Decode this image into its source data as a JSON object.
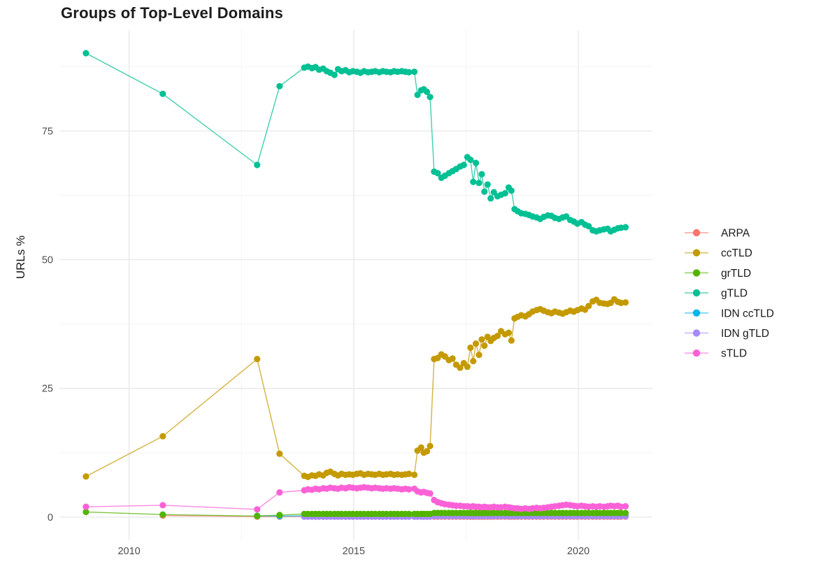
{
  "chart_data": {
    "type": "line",
    "title": "Groups of Top-Level Domains",
    "xlabel": "",
    "ylabel": "URLs %",
    "legend_position": "right",
    "grid": true,
    "xlim": [
      2008.45,
      2021.65
    ],
    "ylim": [
      -4.5,
      94.6
    ],
    "x_ticks": [
      2010,
      2015,
      2020
    ],
    "x_minor_ticks": [
      2012.5,
      2017.5
    ],
    "y_ticks": [
      0,
      25,
      50,
      75
    ],
    "y_minor_ticks": [
      12.5,
      37.5,
      62.5,
      87.5
    ],
    "legend_order": [
      "ARPA",
      "ccTLD",
      "grTLD",
      "gTLD",
      "IDN ccTLD",
      "IDN gTLD",
      "sTLD"
    ],
    "draw_order": [
      "ARPA",
      "IDN ccTLD",
      "IDN gTLD",
      "grTLD",
      "ccTLD",
      "gTLD",
      "sTLD"
    ],
    "x_early": [
      2009.04,
      2010.75,
      2012.85,
      2013.35
    ],
    "x_dense": [
      2013.9,
      2013.98,
      2014.07,
      2014.15,
      2014.23,
      2014.32,
      2014.4,
      2014.48,
      2014.57,
      2014.65,
      2014.73,
      2014.82,
      2014.9,
      2014.98,
      2015.07,
      2015.15,
      2015.23,
      2015.32,
      2015.4,
      2015.48,
      2015.57,
      2015.65,
      2015.73,
      2015.82,
      2015.9,
      2015.98,
      2016.07,
      2016.15,
      2016.23,
      2016.35,
      2016.42,
      2016.5,
      2016.56,
      2016.63,
      2016.7,
      2016.79,
      2016.87,
      2016.95,
      2017.03,
      2017.12,
      2017.2,
      2017.28,
      2017.37,
      2017.45,
      2017.53,
      2017.6,
      2017.66,
      2017.72,
      2017.79,
      2017.85,
      2017.91,
      2017.98,
      2018.05,
      2018.12,
      2018.2,
      2018.28,
      2018.37,
      2018.45,
      2018.51,
      2018.58,
      2018.65,
      2018.73,
      2018.82,
      2018.9,
      2018.98,
      2019.07,
      2019.15,
      2019.23,
      2019.32,
      2019.4,
      2019.48,
      2019.57,
      2019.65,
      2019.73,
      2019.82,
      2019.9,
      2019.98,
      2020.07,
      2020.15,
      2020.23,
      2020.32,
      2020.4,
      2020.48,
      2020.57,
      2020.65,
      2020.72,
      2020.8,
      2020.88,
      2020.95,
      2021.05
    ],
    "series": [
      {
        "name": "ARPA",
        "color": "#F8766D",
        "values_early": [
          null,
          0.3,
          0.1,
          0.1
        ],
        "values_dense": [
          0.1,
          0.1,
          0.1,
          0.1,
          0.1,
          0.1,
          0.1,
          0.1,
          0.1,
          0.1,
          0.1,
          0.1,
          0.1,
          0.1,
          0.1,
          0.1,
          0.1,
          0.1,
          0.1,
          0.1,
          0.1,
          0.1,
          0.1,
          0.1,
          0.1,
          0.1,
          0.1,
          0.1,
          0.1,
          0.1,
          0.1,
          0.1,
          0.1,
          0.1,
          0.1,
          0.1,
          0.1,
          0.1,
          0.1,
          0.1,
          0.1,
          0.1,
          0.1,
          0.1,
          0.1,
          0.1,
          0.1,
          0.1,
          0.1,
          0.1,
          0.1,
          0.1,
          0.1,
          0.1,
          0.1,
          0.1,
          0.1,
          0.1,
          0.1,
          0.1,
          0.1,
          0.1,
          0.1,
          0.1,
          0.1,
          0.1,
          0.1,
          0.1,
          0.1,
          0.1,
          0.1,
          0.1,
          0.1,
          0.1,
          0.1,
          0.1,
          0.1,
          0.1,
          0.1,
          0.1,
          0.1,
          0.1,
          0.1,
          0.1,
          0.1,
          0.1,
          0.1,
          0.1,
          0.1,
          0.1
        ]
      },
      {
        "name": "ccTLD",
        "color": "#C49A00",
        "values_early": [
          7.9,
          15.7,
          30.7,
          12.3
        ],
        "values_dense": [
          8.0,
          7.8,
          8.1,
          8.0,
          8.3,
          8.1,
          8.6,
          8.8,
          8.4,
          8.1,
          8.4,
          8.2,
          8.3,
          8.2,
          8.4,
          8.5,
          8.2,
          8.4,
          8.3,
          8.2,
          8.4,
          8.2,
          8.3,
          8.4,
          8.2,
          8.3,
          8.2,
          8.3,
          8.4,
          8.2,
          12.9,
          13.5,
          12.5,
          12.8,
          13.8,
          30.7,
          30.9,
          31.6,
          31.2,
          30.5,
          30.8,
          29.6,
          29.0,
          29.9,
          29.2,
          32.9,
          30.3,
          33.7,
          31.5,
          34.5,
          33.3,
          35.0,
          34.2,
          34.8,
          35.2,
          36.1,
          35.5,
          35.8,
          34.3,
          38.6,
          38.9,
          39.2,
          39.0,
          39.4,
          39.9,
          40.2,
          40.4,
          40.1,
          39.8,
          39.6,
          39.9,
          39.7,
          39.5,
          39.8,
          40.1,
          39.9,
          40.2,
          40.5,
          40.3,
          41.0,
          41.9,
          42.2,
          41.6,
          41.5,
          41.4,
          41.6,
          42.3,
          41.8,
          41.6,
          41.7
        ]
      },
      {
        "name": "grTLD",
        "color": "#53B400",
        "values_early": [
          1.0,
          0.5,
          0.2,
          0.4
        ],
        "values_dense": [
          0.6,
          0.6,
          0.6,
          0.6,
          0.6,
          0.6,
          0.6,
          0.6,
          0.6,
          0.6,
          0.6,
          0.6,
          0.6,
          0.6,
          0.6,
          0.6,
          0.6,
          0.6,
          0.6,
          0.6,
          0.6,
          0.6,
          0.6,
          0.6,
          0.6,
          0.6,
          0.6,
          0.6,
          0.6,
          0.6,
          0.6,
          0.6,
          0.6,
          0.6,
          0.6,
          0.8,
          0.8,
          0.8,
          0.8,
          0.8,
          0.8,
          0.8,
          0.8,
          0.8,
          0.8,
          0.8,
          0.8,
          0.8,
          0.8,
          0.8,
          0.8,
          0.8,
          0.8,
          0.8,
          0.8,
          0.8,
          0.8,
          0.8,
          0.8,
          0.8,
          0.8,
          0.8,
          0.8,
          0.8,
          0.8,
          0.8,
          0.8,
          0.8,
          0.8,
          0.8,
          0.8,
          0.8,
          0.8,
          0.8,
          0.8,
          0.8,
          0.8,
          0.8,
          0.8,
          0.8,
          0.8,
          0.8,
          0.8,
          0.8,
          0.8,
          0.8,
          0.8,
          0.8,
          0.8,
          0.8
        ]
      },
      {
        "name": "gTLD",
        "color": "#00C094",
        "values_early": [
          90.1,
          82.2,
          68.4,
          83.7
        ],
        "values_dense": [
          87.3,
          87.5,
          87.2,
          87.4,
          86.9,
          87.1,
          86.6,
          86.3,
          85.9,
          87.0,
          86.6,
          86.8,
          86.4,
          86.6,
          86.5,
          86.3,
          86.6,
          86.4,
          86.5,
          86.6,
          86.4,
          86.6,
          86.5,
          86.4,
          86.6,
          86.5,
          86.6,
          86.5,
          86.4,
          86.5,
          82.0,
          82.9,
          83.1,
          82.6,
          81.6,
          67.1,
          66.8,
          65.9,
          66.3,
          66.8,
          67.2,
          67.6,
          68.1,
          68.4,
          69.9,
          69.4,
          65.1,
          68.8,
          64.9,
          66.6,
          63.2,
          64.6,
          61.9,
          63.1,
          62.3,
          62.6,
          62.9,
          64.0,
          63.4,
          59.8,
          59.4,
          59.0,
          58.9,
          58.7,
          58.4,
          58.2,
          57.9,
          58.3,
          58.6,
          58.5,
          58.1,
          57.9,
          58.2,
          58.4,
          57.7,
          57.4,
          57.0,
          57.3,
          56.8,
          56.5,
          55.7,
          55.5,
          55.7,
          55.9,
          56.0,
          55.5,
          55.8,
          56.1,
          56.2,
          56.3
        ]
      },
      {
        "name": "IDN ccTLD",
        "color": "#00B6EB",
        "values_early": [
          null,
          null,
          0.25,
          0.2
        ],
        "values_dense": [
          0.25,
          0.25,
          0.25,
          0.25,
          0.25,
          0.25,
          0.25,
          0.25,
          0.25,
          0.25,
          0.25,
          0.25,
          0.25,
          0.25,
          0.25,
          0.25,
          0.25,
          0.25,
          0.25,
          0.25,
          0.25,
          0.25,
          0.25,
          0.25,
          0.25,
          0.25,
          0.25,
          0.25,
          0.25,
          0.25,
          0.25,
          0.25,
          0.25,
          0.25,
          0.25,
          0.3,
          0.3,
          0.3,
          0.3,
          0.3,
          0.3,
          0.3,
          0.3,
          0.3,
          0.3,
          0.3,
          0.3,
          0.3,
          0.3,
          0.3,
          0.3,
          0.3,
          0.3,
          0.3,
          0.3,
          0.3,
          0.3,
          0.3,
          0.3,
          0.3,
          0.3,
          0.3,
          0.3,
          0.3,
          0.3,
          0.3,
          0.3,
          0.3,
          0.3,
          0.3,
          0.3,
          0.3,
          0.3,
          0.3,
          0.3,
          0.3,
          0.3,
          0.3,
          0.3,
          0.3,
          0.3,
          0.3,
          0.3,
          0.3,
          0.3,
          0.3,
          0.3,
          0.3,
          0.3,
          0.3
        ]
      },
      {
        "name": "IDN gTLD",
        "color": "#A58AFF",
        "values_early": [
          null,
          null,
          null,
          null
        ],
        "values_dense": [
          0.1,
          0.1,
          0.1,
          0.1,
          0.1,
          0.1,
          0.1,
          0.1,
          0.1,
          0.1,
          0.1,
          0.1,
          0.1,
          0.1,
          0.1,
          0.1,
          0.1,
          0.1,
          0.1,
          0.1,
          0.1,
          0.1,
          0.1,
          0.1,
          0.1,
          0.1,
          0.1,
          0.1,
          0.1,
          0.1,
          0.1,
          0.1,
          0.1,
          0.1,
          0.1,
          0.2,
          0.2,
          0.2,
          0.2,
          0.2,
          0.2,
          0.2,
          0.2,
          0.2,
          0.2,
          0.2,
          0.2,
          0.2,
          0.2,
          0.2,
          0.2,
          0.2,
          0.2,
          0.2,
          0.2,
          0.2,
          0.2,
          0.2,
          0.2,
          0.2,
          0.2,
          0.2,
          0.2,
          0.2,
          0.2,
          0.2,
          0.2,
          0.2,
          0.2,
          0.2,
          0.2,
          0.2,
          0.2,
          0.2,
          0.2,
          0.2,
          0.2,
          0.2,
          0.2,
          0.2,
          0.2,
          0.2,
          0.2,
          0.2,
          0.2,
          0.2,
          0.2,
          0.2,
          0.2,
          0.2
        ]
      },
      {
        "name": "sTLD",
        "color": "#FB61D7",
        "values_early": [
          2.0,
          2.3,
          1.5,
          4.8
        ],
        "values_dense": [
          5.2,
          5.4,
          5.3,
          5.5,
          5.4,
          5.6,
          5.5,
          5.7,
          5.6,
          5.5,
          5.7,
          5.6,
          5.8,
          5.7,
          5.6,
          5.7,
          5.8,
          5.7,
          5.6,
          5.7,
          5.6,
          5.5,
          5.6,
          5.5,
          5.6,
          5.5,
          5.4,
          5.5,
          5.4,
          5.5,
          5.0,
          4.8,
          4.9,
          4.7,
          4.6,
          3.3,
          2.9,
          2.7,
          2.5,
          2.4,
          2.3,
          2.2,
          2.2,
          2.1,
          2.1,
          2.0,
          2.1,
          2.0,
          2.0,
          1.9,
          2.0,
          1.9,
          1.9,
          2.0,
          1.9,
          1.9,
          2.0,
          1.9,
          1.8,
          1.7,
          1.7,
          1.6,
          1.7,
          1.6,
          1.7,
          1.8,
          1.7,
          1.8,
          1.9,
          2.0,
          2.1,
          2.2,
          2.3,
          2.4,
          2.3,
          2.2,
          2.1,
          2.2,
          2.1,
          2.0,
          2.1,
          2.0,
          2.1,
          2.0,
          2.1,
          2.2,
          2.1,
          2.2,
          2.0,
          2.1
        ]
      }
    ]
  }
}
